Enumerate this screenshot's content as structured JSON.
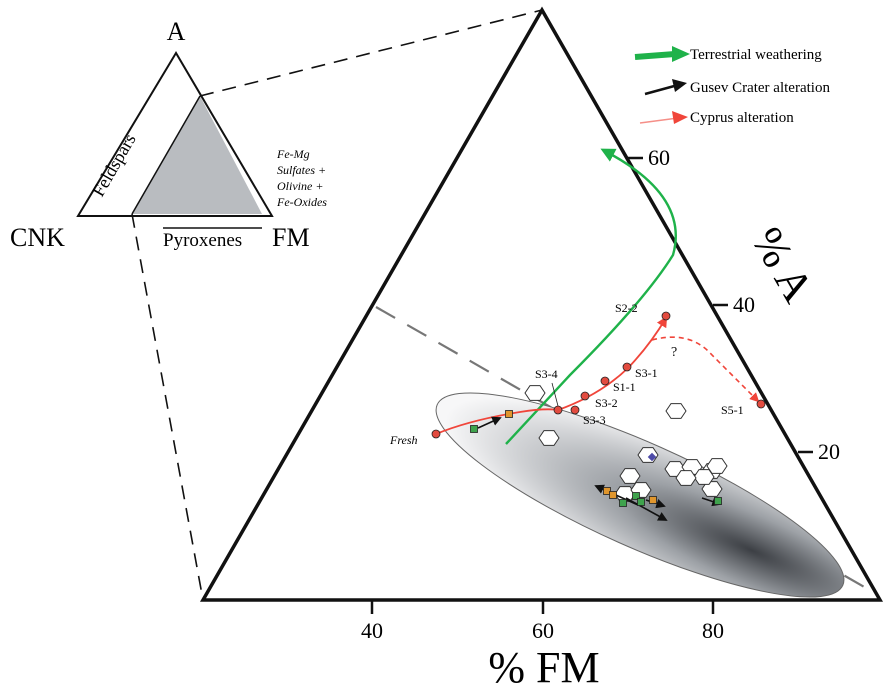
{
  "inset": {
    "apex_labels": {
      "top": "A",
      "left": "CNK",
      "right": "FM"
    },
    "side_labels": {
      "left": "Feldspars",
      "bottom": "Pyroxenes"
    },
    "fe_mg_note": [
      "Fe-Mg",
      "Sulfates +",
      "Olivine +",
      "Fe-Oxides"
    ]
  },
  "legend": [
    {
      "label": "Terrestrial weathering",
      "color": "#1fb24a"
    },
    {
      "label": "Gusev Crater alteration",
      "color": "#111111"
    },
    {
      "label": "Cyprus alteration",
      "color": "#f0453a"
    }
  ],
  "axes": {
    "fm_label": "% FM",
    "fm_ticks": [
      "40",
      "60",
      "80"
    ],
    "a_label": "% A",
    "a_ticks": [
      "60",
      "40",
      "20"
    ]
  },
  "samples": [
    {
      "label": "Fresh"
    },
    {
      "label": "S3-4"
    },
    {
      "label": "S3-3"
    },
    {
      "label": "S3-2"
    },
    {
      "label": "S1-1"
    },
    {
      "label": "S3-1"
    },
    {
      "label": "S2-2"
    },
    {
      "label": "S5-1"
    }
  ],
  "question_mark": "?",
  "colors": {
    "gray_fill": "#b9bcc0",
    "sample_fill": "#e24b3f",
    "green_square": "#3fa34d",
    "orange_square": "#e0962d",
    "blue_diamond": "#4d4aa8"
  }
}
